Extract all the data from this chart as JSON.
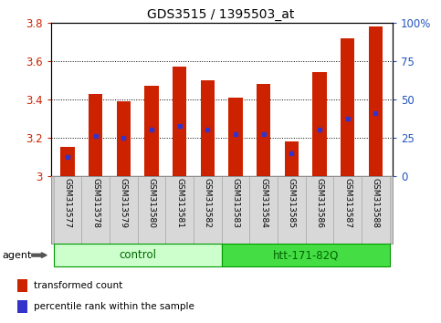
{
  "title": "GDS3515 / 1395503_at",
  "samples": [
    "GSM313577",
    "GSM313578",
    "GSM313579",
    "GSM313580",
    "GSM313581",
    "GSM313582",
    "GSM313583",
    "GSM313584",
    "GSM313585",
    "GSM313586",
    "GSM313587",
    "GSM313588"
  ],
  "bar_values": [
    3.15,
    3.43,
    3.39,
    3.47,
    3.57,
    3.5,
    3.41,
    3.48,
    3.18,
    3.54,
    3.72,
    3.78
  ],
  "percentile_values": [
    3.1,
    3.21,
    3.2,
    3.24,
    3.26,
    3.24,
    3.22,
    3.22,
    3.12,
    3.24,
    3.3,
    3.33
  ],
  "bar_bottom": 3.0,
  "ylim": [
    3.0,
    3.8
  ],
  "yticks_left": [
    3.0,
    3.2,
    3.4,
    3.6,
    3.8
  ],
  "yticks_right": [
    0,
    25,
    50,
    75,
    100
  ],
  "bar_color": "#cc2200",
  "percentile_color": "#3333cc",
  "groups": [
    {
      "label": "control",
      "start": 0,
      "end": 6,
      "color": "#ccffcc",
      "border": "#009900"
    },
    {
      "label": "htt-171-82Q",
      "start": 6,
      "end": 12,
      "color": "#44dd44",
      "border": "#009900"
    }
  ],
  "agent_label": "agent",
  "legend_items": [
    {
      "label": "transformed count",
      "color": "#cc2200"
    },
    {
      "label": "percentile rank within the sample",
      "color": "#3333cc"
    }
  ],
  "tick_label_color_left": "#cc2200",
  "tick_label_color_right": "#2255bb",
  "bar_width": 0.5,
  "label_box_color": "#d8d8d8",
  "label_box_edge": "#aaaaaa"
}
